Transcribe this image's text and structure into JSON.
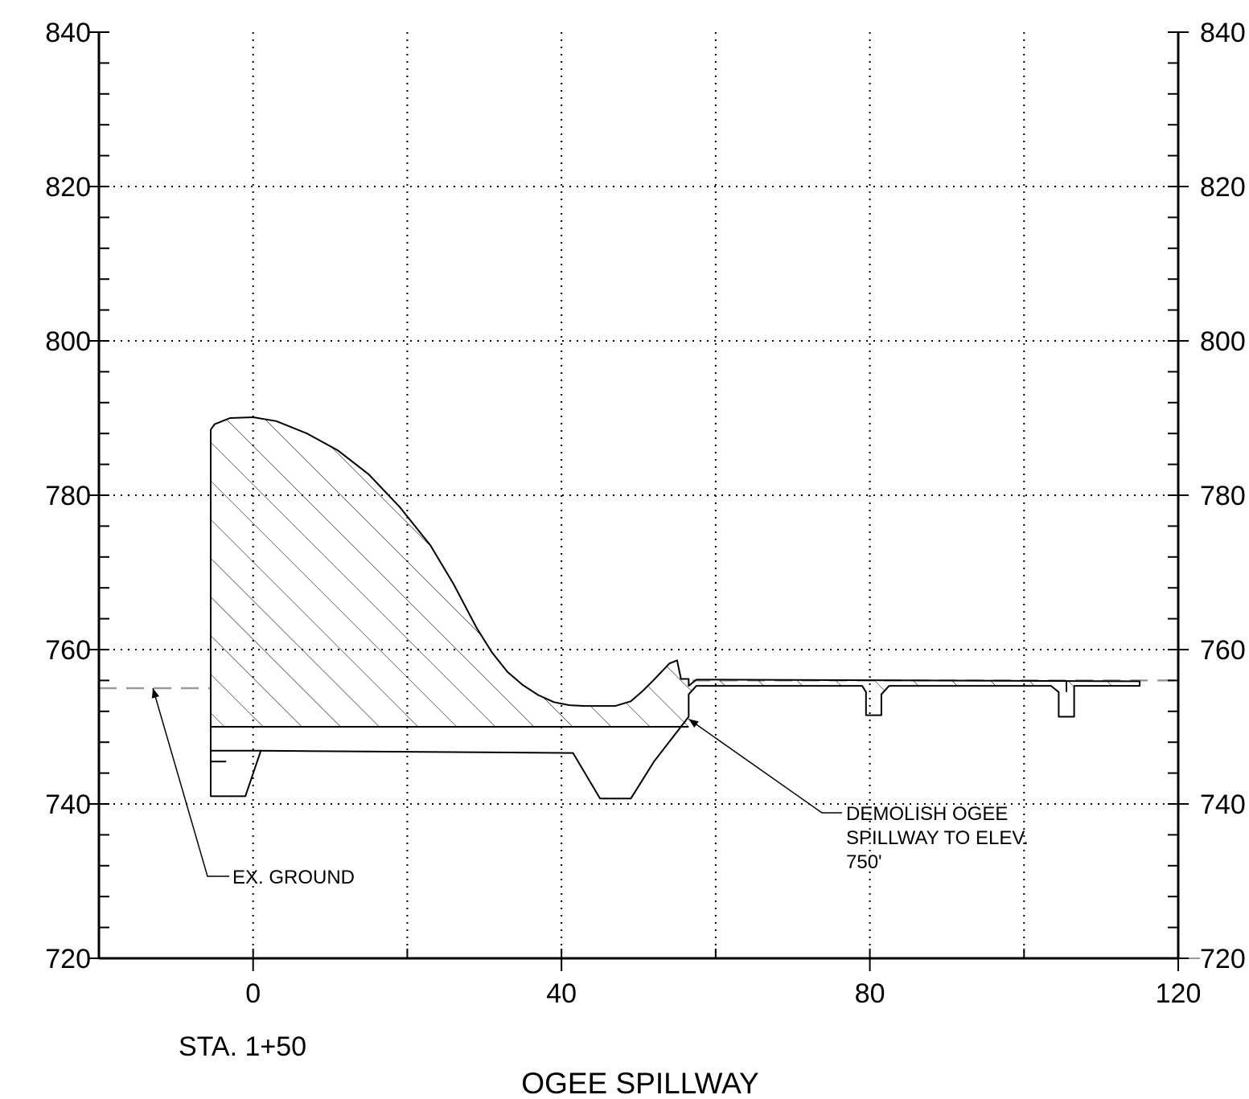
{
  "chart_data": {
    "type": "section",
    "title": "OGEE SPILLWAY",
    "station_label": "STA. 1+50",
    "x_ticks": [
      "0",
      "40",
      "80",
      "120"
    ],
    "y_ticks_left": [
      "840",
      "820",
      "800",
      "780",
      "760",
      "740",
      "720"
    ],
    "y_ticks_right": [
      "840",
      "820",
      "800",
      "780",
      "760",
      "740",
      "720"
    ],
    "xlim": [
      -20,
      120
    ],
    "ylim": [
      720,
      840
    ],
    "grid": true,
    "annotations": [
      {
        "text": "EX. GROUND",
        "lines": [
          "EX. GROUND"
        ],
        "points_to": {
          "x": -13,
          "y": 755
        }
      },
      {
        "text": "DEMOLISH OGEE SPILLWAY TO ELEV. 750'",
        "lines": [
          "DEMOLISH OGEE",
          "SPILLWAY TO ELEV.",
          "750'"
        ],
        "points_to": {
          "x": 56.5,
          "y": 751
        }
      }
    ],
    "existing_ground": [
      [
        -20,
        755
      ],
      [
        -5.5,
        755
      ],
      [
        57,
        756
      ],
      [
        120,
        756
      ]
    ],
    "demolish_elevation": 750,
    "spillway_outline": [
      [
        -5.5,
        788.5
      ],
      [
        -5,
        789.2
      ],
      [
        -3,
        790
      ],
      [
        0,
        790.1
      ],
      [
        3,
        789.6
      ],
      [
        7,
        788
      ],
      [
        11,
        785.8
      ],
      [
        15,
        782.7
      ],
      [
        19,
        778.5
      ],
      [
        23,
        773.5
      ],
      [
        26,
        768.5
      ],
      [
        29,
        762.8
      ],
      [
        31,
        759.6
      ],
      [
        33,
        757.1
      ],
      [
        35,
        755.4
      ],
      [
        37,
        754.1
      ],
      [
        39,
        753.2
      ],
      [
        41,
        752.8
      ],
      [
        43,
        752.7
      ],
      [
        47,
        752.7
      ],
      [
        49,
        753.3
      ],
      [
        50.5,
        754.6
      ],
      [
        52,
        756.1
      ],
      [
        54,
        758.2
      ],
      [
        55,
        758.6
      ],
      [
        55.5,
        756.2
      ],
      [
        56.5,
        756.2
      ],
      [
        56.5,
        755.3
      ],
      [
        57.5,
        756.1
      ],
      [
        60,
        756.1
      ],
      [
        115,
        755.9
      ],
      [
        115,
        755.3
      ],
      [
        111,
        755.3
      ],
      [
        106.5,
        755.3
      ],
      [
        106.5,
        751.3
      ],
      [
        104.5,
        751.3
      ],
      [
        104.5,
        754.5
      ],
      [
        103.5,
        755.3
      ],
      [
        82.5,
        755.3
      ],
      [
        81.5,
        754.2
      ],
      [
        81.5,
        751.5
      ],
      [
        79.5,
        751.5
      ],
      [
        79.5,
        754.5
      ],
      [
        79,
        755.3
      ],
      [
        57.5,
        755.3
      ],
      [
        56.5,
        754.2
      ],
      [
        56.5,
        751.3
      ],
      [
        52,
        745.5
      ],
      [
        49,
        740.7
      ],
      [
        45,
        740.7
      ],
      [
        41.5,
        746.6
      ],
      [
        1,
        746.9
      ],
      [
        -1,
        741
      ],
      [
        -5.5,
        741
      ],
      [
        -5.5,
        788.5
      ]
    ],
    "hatched_region": [
      [
        -5.5,
        788.5
      ],
      [
        -5,
        789.2
      ],
      [
        -3,
        790
      ],
      [
        0,
        790.1
      ],
      [
        3,
        789.6
      ],
      [
        7,
        788
      ],
      [
        11,
        785.8
      ],
      [
        15,
        782.7
      ],
      [
        19,
        778.5
      ],
      [
        23,
        773.5
      ],
      [
        26,
        768.5
      ],
      [
        29,
        762.8
      ],
      [
        31,
        759.6
      ],
      [
        33,
        757.1
      ],
      [
        35,
        755.4
      ],
      [
        37,
        754.1
      ],
      [
        39,
        753.2
      ],
      [
        41,
        752.8
      ],
      [
        43,
        752.7
      ],
      [
        47,
        752.7
      ],
      [
        49,
        753.3
      ],
      [
        50.5,
        754.6
      ],
      [
        52,
        756.1
      ],
      [
        54,
        758.2
      ],
      [
        55,
        758.6
      ],
      [
        55.5,
        756.2
      ],
      [
        56.5,
        756.2
      ],
      [
        56.5,
        755.3
      ],
      [
        57.5,
        756.1
      ],
      [
        60,
        756.1
      ],
      [
        115,
        755.9
      ],
      [
        115,
        755.3
      ],
      [
        106.5,
        755.3
      ],
      [
        106.5,
        753
      ],
      [
        105.5,
        753
      ],
      [
        105.5,
        755.3
      ],
      [
        82.5,
        755.3
      ],
      [
        80.5,
        753
      ],
      [
        80.5,
        755.3
      ],
      [
        57.5,
        755.3
      ],
      [
        56.5,
        754.2
      ],
      [
        56.5,
        750
      ],
      [
        -5.5,
        750
      ]
    ],
    "inner_lines": [
      [
        [
          -5.5,
          750
        ],
        [
          56.5,
          750
        ]
      ],
      [
        [
          -5.5,
          746.9
        ],
        [
          1,
          746.9
        ]
      ],
      [
        [
          -5.5,
          745.5
        ],
        [
          -3.5,
          745.5
        ]
      ],
      [
        [
          105.5,
          755.9
        ],
        [
          105.5,
          754.5
        ]
      ]
    ]
  }
}
